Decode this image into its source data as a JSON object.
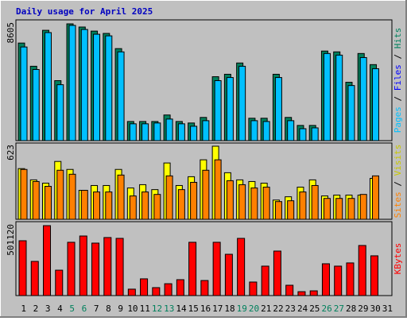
{
  "chart_data": [
    {
      "type": "bar",
      "title": "Daily usage for April 2025",
      "categories": [
        "1",
        "2",
        "3",
        "4",
        "5",
        "6",
        "7",
        "8",
        "9",
        "10",
        "11",
        "12",
        "13",
        "14",
        "15",
        "16",
        "17",
        "18",
        "19",
        "20",
        "21",
        "22",
        "23",
        "24",
        "25",
        "26",
        "27",
        "28",
        "29",
        "30",
        "31"
      ],
      "category_colors": [
        "#000000",
        "#000000",
        "#000000",
        "#000000",
        "#00805c",
        "#00805c",
        "#000000",
        "#000000",
        "#000000",
        "#000000",
        "#000000",
        "#00805c",
        "#00805c",
        "#000000",
        "#000000",
        "#000000",
        "#000000",
        "#000000",
        "#00805c",
        "#00805c",
        "#000000",
        "#000000",
        "#000000",
        "#000000",
        "#000000",
        "#00805c",
        "#00805c",
        "#000000",
        "#000000",
        "#000000",
        "#000000"
      ],
      "series": [
        {
          "name": "Hits",
          "color": "#00805c",
          "values": [
            7190,
            5480,
            8130,
            4420,
            8605,
            8370,
            8070,
            7900,
            6780,
            1410,
            1410,
            1410,
            1890,
            1410,
            1300,
            1710,
            4710,
            4890,
            5720,
            1650,
            1650,
            4890,
            1710,
            1120,
            1120,
            6600,
            6540,
            4300,
            6420,
            5600,
            0
          ]
        },
        {
          "name": "Files",
          "color": "#00c0ff",
          "values": [
            6900,
            5240,
            7960,
            4120,
            8490,
            8190,
            7840,
            7720,
            6540,
            1240,
            1240,
            1300,
            1590,
            1240,
            1060,
            1470,
            4420,
            4650,
            5480,
            1470,
            1410,
            4650,
            1470,
            880,
            940,
            6420,
            6300,
            4060,
            6120,
            5300,
            0
          ]
        }
      ],
      "right_label": [
        {
          "text": "Pages",
          "color": "#00c0ff"
        },
        {
          "text": " / ",
          "color": "#000000"
        },
        {
          "text": "Files",
          "color": "#0000ff"
        },
        {
          "text": " / ",
          "color": "#000000"
        },
        {
          "text": "Hits",
          "color": "#00805c"
        }
      ],
      "ylim": [
        0,
        8605
      ],
      "yticks": [
        8605
      ]
    },
    {
      "type": "bar",
      "series": [
        {
          "name": "Visits",
          "color": "#ffff00",
          "values": [
            432,
            336,
            308,
            493,
            425,
            247,
            288,
            288,
            425,
            267,
            295,
            253,
            480,
            288,
            363,
            507,
            623,
            397,
            336,
            322,
            308,
            164,
            192,
            274,
            336,
            199,
            206,
            206,
            206,
            349,
            0
          ]
        },
        {
          "name": "Sites",
          "color": "#ff8000",
          "values": [
            425,
            322,
            281,
            418,
            384,
            247,
            233,
            233,
            377,
            199,
            233,
            212,
            370,
            253,
            315,
            418,
            507,
            329,
            295,
            267,
            274,
            151,
            158,
            233,
            288,
            178,
            178,
            178,
            212,
            370,
            0
          ]
        }
      ],
      "right_label": [
        {
          "text": "Sites",
          "color": "#ff8000"
        },
        {
          "text": " / ",
          "color": "#000000"
        },
        {
          "text": "Visits",
          "color": "#c8c800"
        }
      ],
      "ylim": [
        0,
        623
      ],
      "yticks": [
        623
      ]
    },
    {
      "type": "bar",
      "series": [
        {
          "name": "KBytes",
          "color": "#ff0000",
          "values": [
            393000,
            245000,
            501120,
            182000,
            382000,
            427000,
            376000,
            416000,
            410000,
            46000,
            120000,
            57000,
            85000,
            114000,
            382000,
            108000,
            382000,
            296000,
            410000,
            97000,
            211000,
            319000,
            74000,
            28000,
            34000,
            228000,
            211000,
            234000,
            359000,
            285000,
            0
          ]
        }
      ],
      "right_label": [
        {
          "text": "KBytes",
          "color": "#ff0000"
        }
      ],
      "ylim": [
        0,
        501120
      ],
      "yticks": [
        501120
      ]
    }
  ]
}
